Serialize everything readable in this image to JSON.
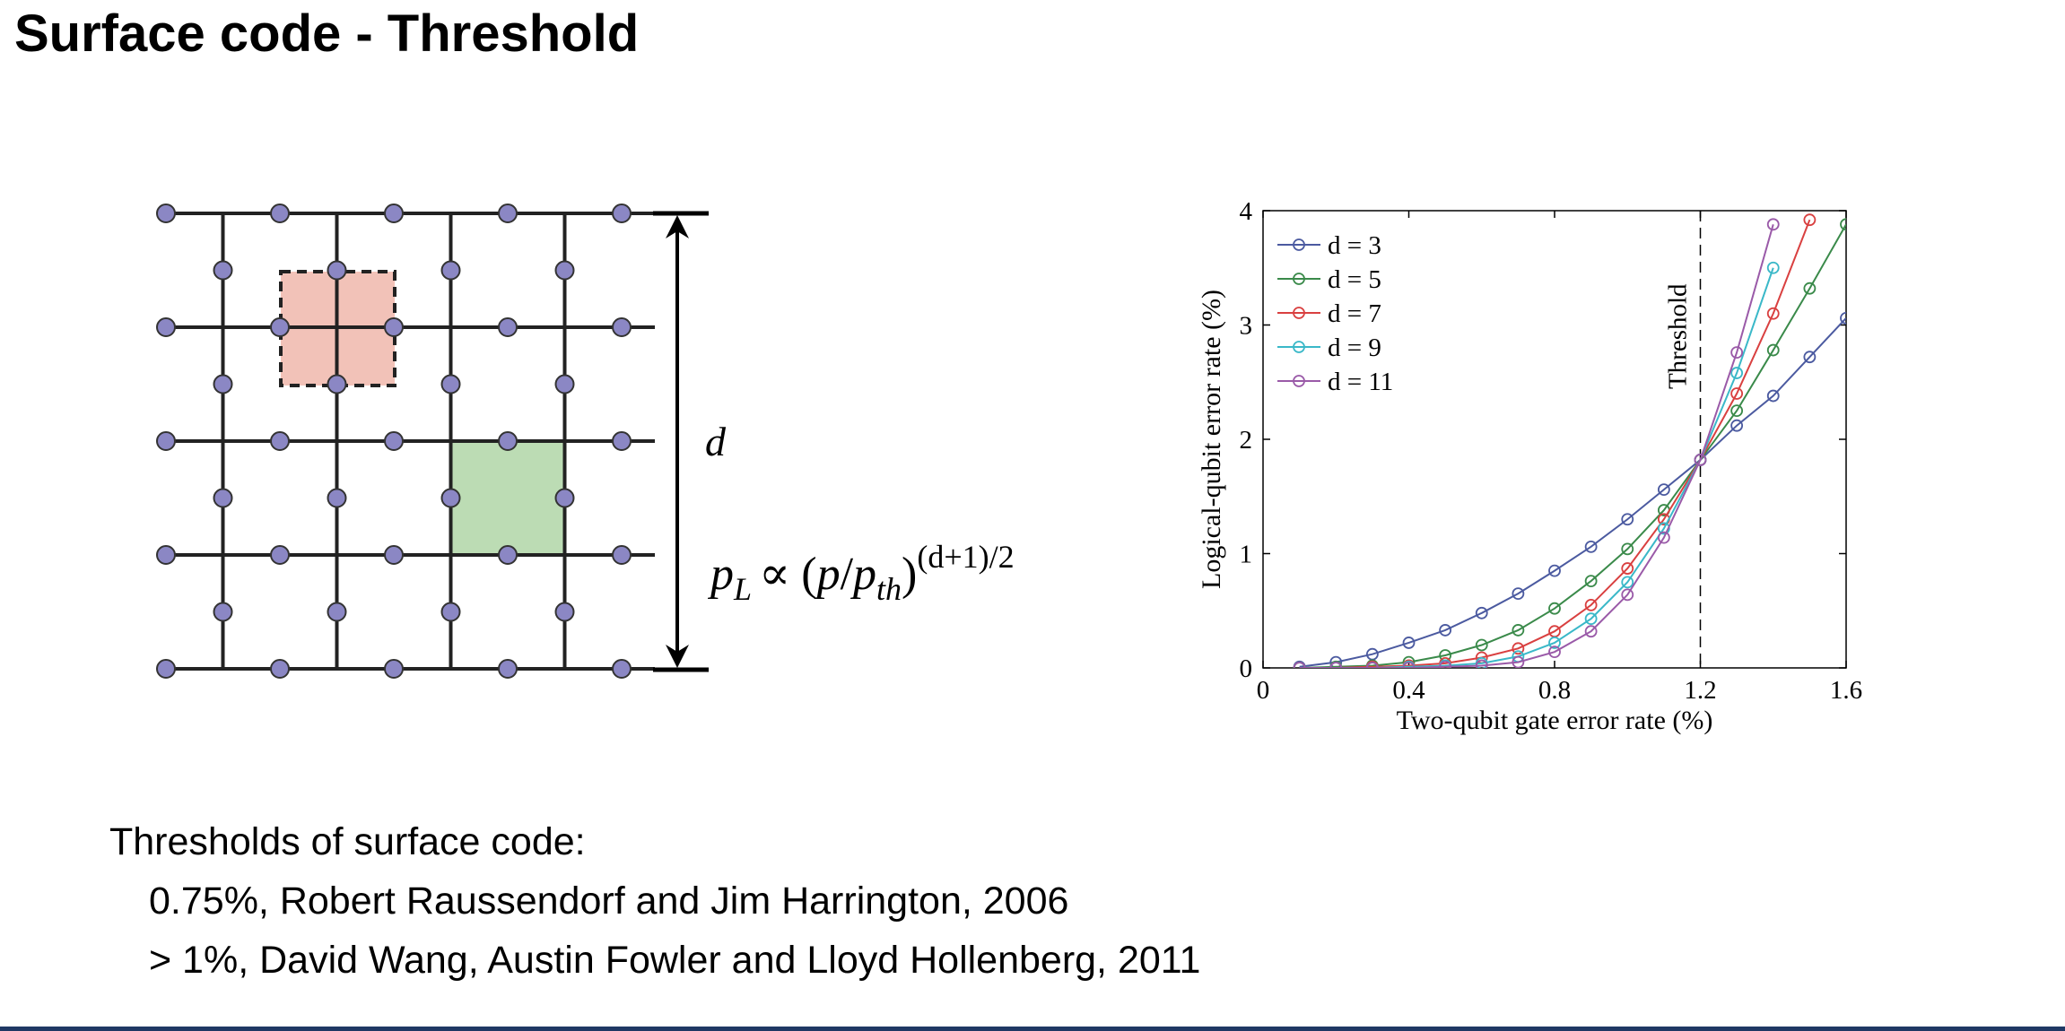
{
  "slide": {
    "title": "Surface code - Threshold"
  },
  "lattice_diagram": {
    "distance_label": "d",
    "formula": {
      "lhs_p": "p",
      "lhs_sub": "L",
      "proportional": "∝",
      "open_paren": "(",
      "p": "p",
      "slash": "/",
      "p_th": "p",
      "th_sub": "th",
      "close_paren": ")",
      "exponent": "(d+1)/2"
    },
    "colors": {
      "node": "#8b87c4",
      "x_stabilizer": "#f2c2b8",
      "z_stabilizer": "#bcdcb4",
      "line": "#222222"
    }
  },
  "chart_data": {
    "type": "line",
    "xlabel": "Two-qubit gate error rate (%)",
    "ylabel": "Logical-qubit error rate (%)",
    "xlim": [
      0,
      1.6
    ],
    "ylim": [
      0,
      4
    ],
    "x_ticks": [
      "0",
      "0.4",
      "0.8",
      "1.2",
      "1.6"
    ],
    "y_ticks": [
      "0",
      "1",
      "2",
      "3",
      "4"
    ],
    "threshold": {
      "x": 1.2,
      "label": "Threshold"
    },
    "legend_position": "top-left",
    "series": [
      {
        "name": "d = 3",
        "color": "#4b5aa0",
        "x": [
          0.1,
          0.2,
          0.3,
          0.4,
          0.5,
          0.6,
          0.7,
          0.8,
          0.9,
          1.0,
          1.1,
          1.2,
          1.3,
          1.4,
          1.5,
          1.6
        ],
        "y": [
          0.01,
          0.05,
          0.12,
          0.22,
          0.33,
          0.48,
          0.65,
          0.85,
          1.06,
          1.3,
          1.56,
          1.82,
          2.12,
          2.38,
          2.72,
          3.06
        ]
      },
      {
        "name": "d = 5",
        "color": "#3a8a4a",
        "x": [
          0.1,
          0.2,
          0.3,
          0.4,
          0.5,
          0.6,
          0.7,
          0.8,
          0.9,
          1.0,
          1.1,
          1.2,
          1.3,
          1.4,
          1.5,
          1.6
        ],
        "y": [
          0.0,
          0.01,
          0.02,
          0.05,
          0.11,
          0.2,
          0.33,
          0.52,
          0.76,
          1.04,
          1.38,
          1.82,
          2.25,
          2.78,
          3.32,
          3.88
        ]
      },
      {
        "name": "d = 7",
        "color": "#d94040",
        "x": [
          0.1,
          0.2,
          0.3,
          0.4,
          0.5,
          0.6,
          0.7,
          0.8,
          0.9,
          1.0,
          1.1,
          1.2,
          1.3,
          1.4,
          1.5
        ],
        "y": [
          0.0,
          0.0,
          0.01,
          0.02,
          0.04,
          0.09,
          0.17,
          0.32,
          0.55,
          0.87,
          1.3,
          1.82,
          2.4,
          3.1,
          3.92
        ]
      },
      {
        "name": "d = 9",
        "color": "#3ab8c8",
        "x": [
          0.1,
          0.2,
          0.3,
          0.4,
          0.5,
          0.6,
          0.7,
          0.8,
          0.9,
          1.0,
          1.1,
          1.2,
          1.3,
          1.4
        ],
        "y": [
          0.0,
          0.0,
          0.0,
          0.01,
          0.02,
          0.04,
          0.1,
          0.22,
          0.43,
          0.75,
          1.22,
          1.82,
          2.58,
          3.5
        ]
      },
      {
        "name": "d = 11",
        "color": "#9a5aa8",
        "x": [
          0.1,
          0.2,
          0.3,
          0.4,
          0.5,
          0.6,
          0.7,
          0.8,
          0.9,
          1.0,
          1.1,
          1.2,
          1.3,
          1.4
        ],
        "y": [
          0.0,
          0.0,
          0.0,
          0.0,
          0.01,
          0.02,
          0.05,
          0.14,
          0.32,
          0.64,
          1.14,
          1.82,
          2.76,
          3.88
        ]
      }
    ]
  },
  "thresholds": {
    "heading": "Thresholds of surface code:",
    "items": [
      "0.75%, Robert Raussendorf and Jim Harrington, 2006",
      "> 1%, David Wang, Austin Fowler and Lloyd Hollenberg, 2011"
    ]
  }
}
